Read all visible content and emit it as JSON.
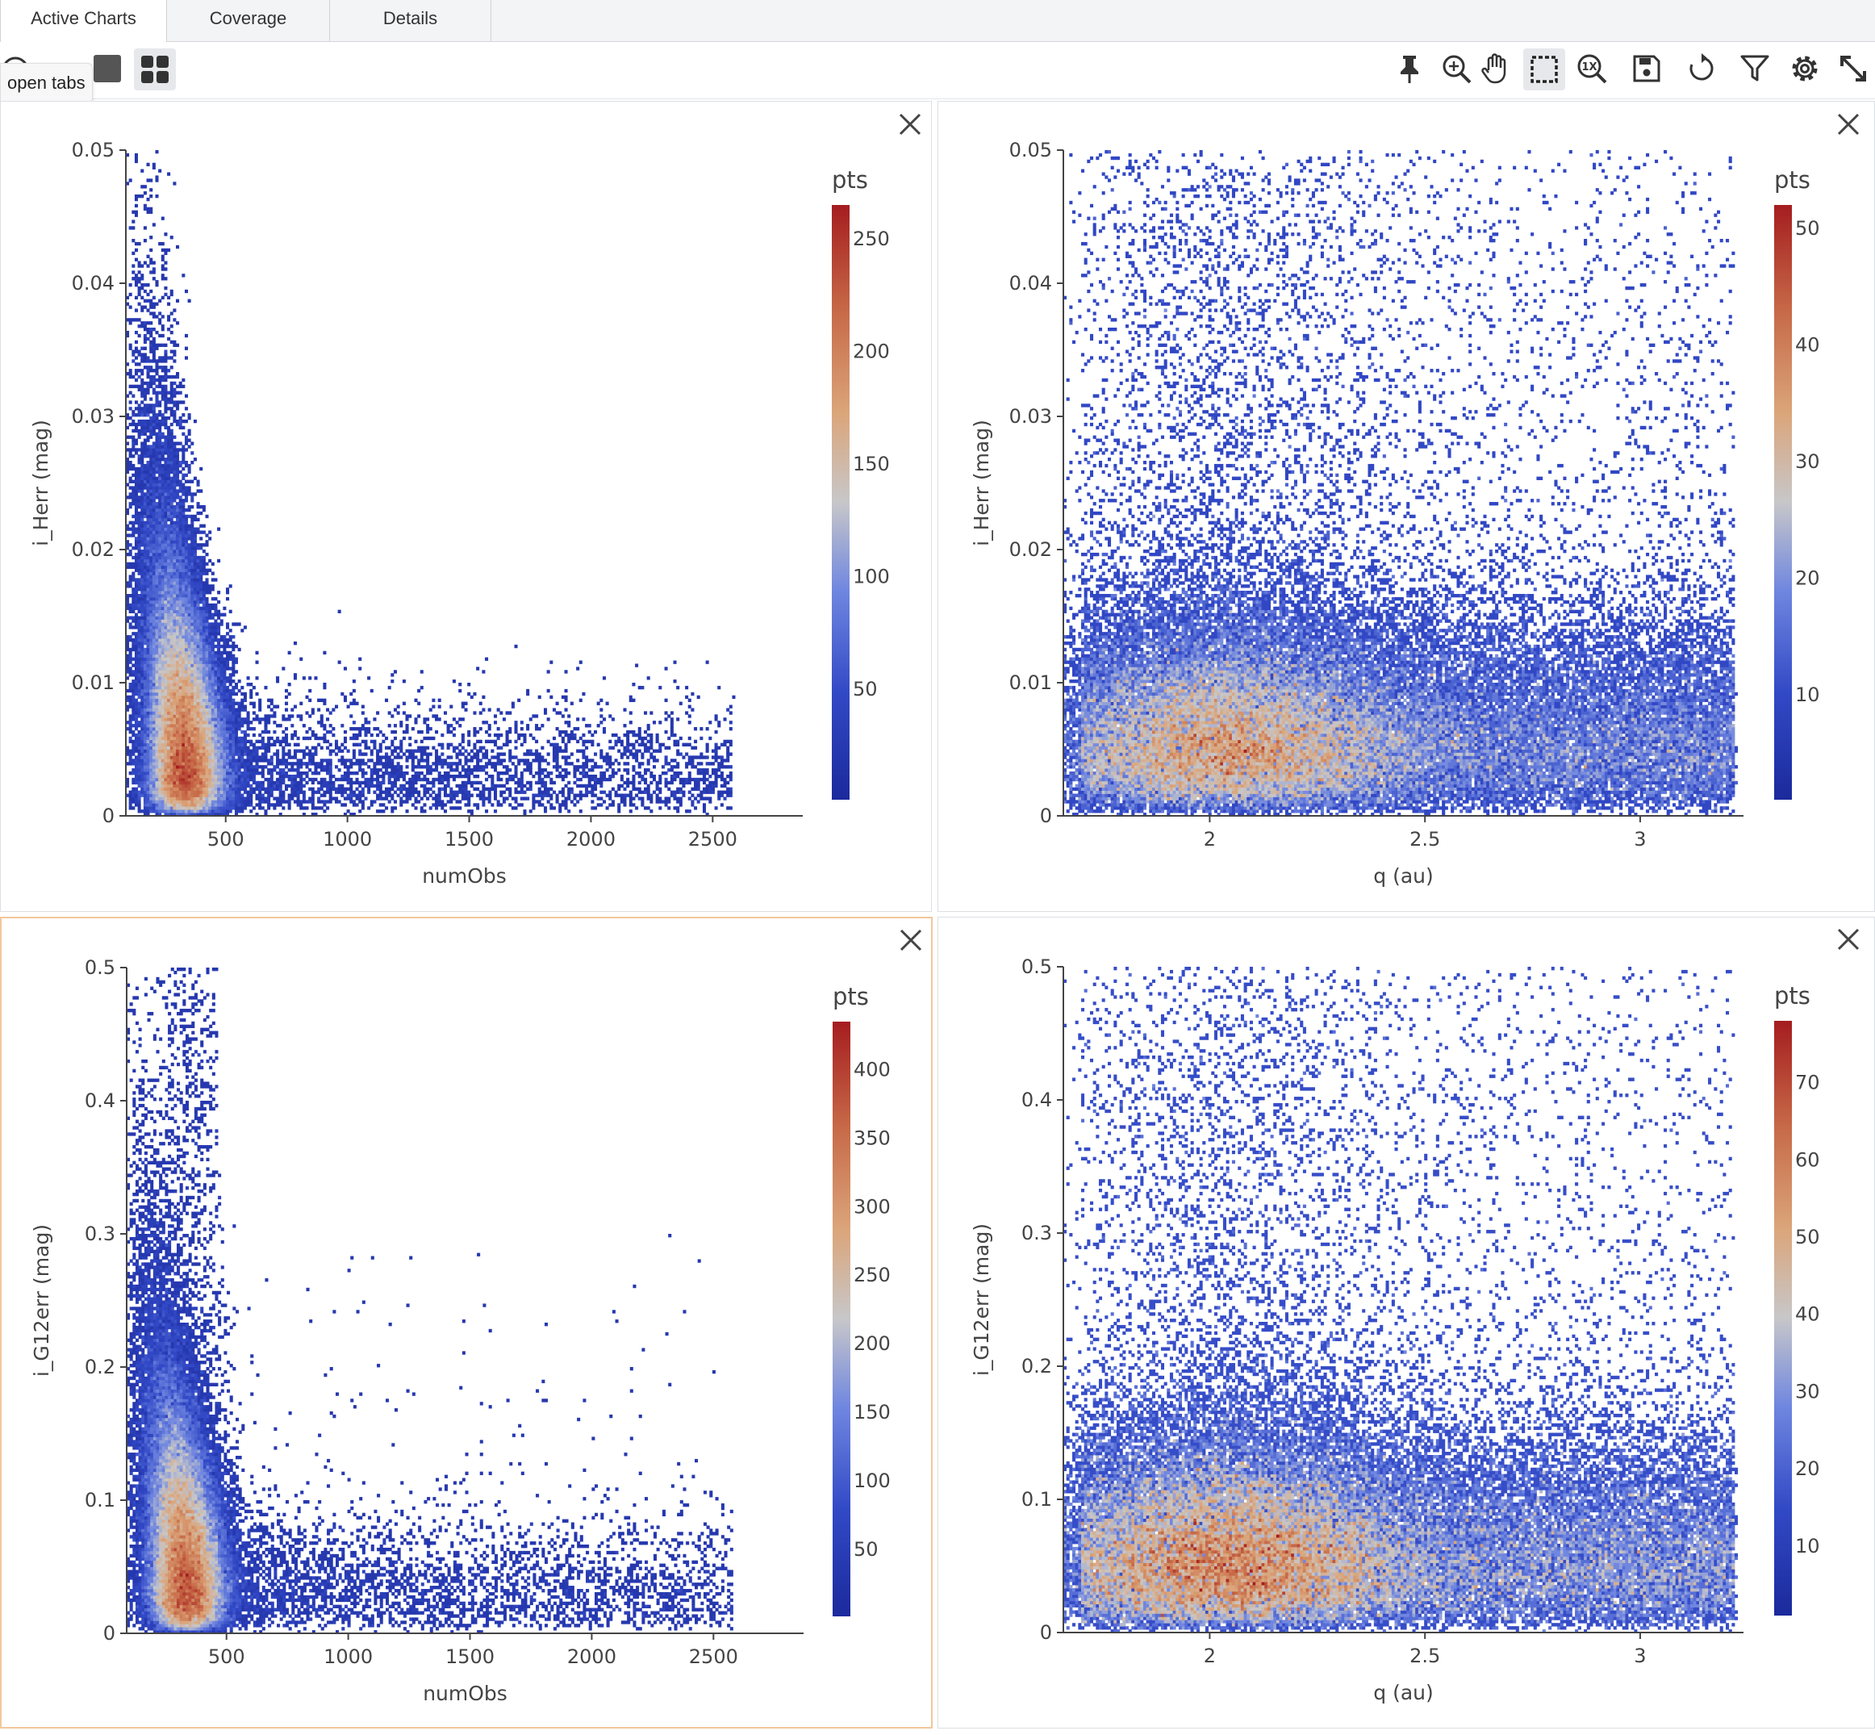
{
  "tabs": [
    {
      "label": "Active Charts",
      "active": true
    },
    {
      "label": "Coverage",
      "active": false
    },
    {
      "label": "Details",
      "active": false
    }
  ],
  "tooltip": "open tabs",
  "toolbar_icons": [
    "single-view-icon",
    "grid-view-icon",
    "pin-icon",
    "zoom-icon",
    "pan-icon",
    "select-icon",
    "zoom-1x-icon",
    "save-icon",
    "restore-icon",
    "filter-icon",
    "settings-icon",
    "expand-icon"
  ],
  "colors": {
    "low": "#1f2fa0",
    "mid": "#c8c8c8",
    "high": "#a81e1e",
    "accent": "#f2c79b"
  },
  "chart_data": [
    {
      "type": "heatmap",
      "xlabel": "numObs",
      "ylabel": "i_Herr (mag)",
      "xticks": [
        500,
        1000,
        1500,
        2000,
        2500
      ],
      "xlim": [
        90,
        2870
      ],
      "yticks": [
        0,
        0.01,
        0.02,
        0.03,
        0.04,
        0.05
      ],
      "ylim": [
        0,
        0.05
      ],
      "colorbar": {
        "title": "pts",
        "min": 1,
        "max": 265,
        "ticks": [
          50,
          100,
          150,
          200,
          250
        ]
      },
      "peak": {
        "x": 270,
        "y": 0.003,
        "value": 265
      }
    },
    {
      "type": "heatmap",
      "xlabel": "q (au)",
      "ylabel": "i_Herr (mag)",
      "xticks": [
        2,
        2.5,
        3
      ],
      "xlim": [
        1.66,
        3.24
      ],
      "yticks": [
        0,
        0.01,
        0.02,
        0.03,
        0.04,
        0.05
      ],
      "ylim": [
        0,
        0.05
      ],
      "colorbar": {
        "title": "pts",
        "min": 1,
        "max": 52,
        "ticks": [
          10,
          20,
          30,
          40,
          50
        ]
      },
      "peak": {
        "x": 2.05,
        "y": 0.002,
        "value": 52
      }
    },
    {
      "type": "heatmap",
      "xlabel": "numObs",
      "ylabel": "i_G12err (mag)",
      "xticks": [
        500,
        1000,
        1500,
        2000,
        2500
      ],
      "xlim": [
        90,
        2870
      ],
      "yticks": [
        0,
        0.1,
        0.2,
        0.3,
        0.4,
        0.5
      ],
      "ylim": [
        0,
        0.5
      ],
      "colorbar": {
        "title": "pts",
        "min": 1,
        "max": 435,
        "ticks": [
          50,
          100,
          150,
          200,
          250,
          300,
          350,
          400
        ]
      },
      "peak": {
        "x": 270,
        "y": 0.02,
        "value": 435
      }
    },
    {
      "type": "heatmap",
      "xlabel": "q (au)",
      "ylabel": "i_G12err (mag)",
      "xticks": [
        2,
        2.5,
        3
      ],
      "xlim": [
        1.66,
        3.24
      ],
      "yticks": [
        0,
        0.1,
        0.2,
        0.3,
        0.4,
        0.5
      ],
      "ylim": [
        0,
        0.5
      ],
      "colorbar": {
        "title": "pts",
        "min": 1,
        "max": 78,
        "ticks": [
          10,
          20,
          30,
          40,
          50,
          60,
          70
        ]
      },
      "peak": {
        "x": 2.05,
        "y": 0.01,
        "value": 78
      }
    }
  ]
}
